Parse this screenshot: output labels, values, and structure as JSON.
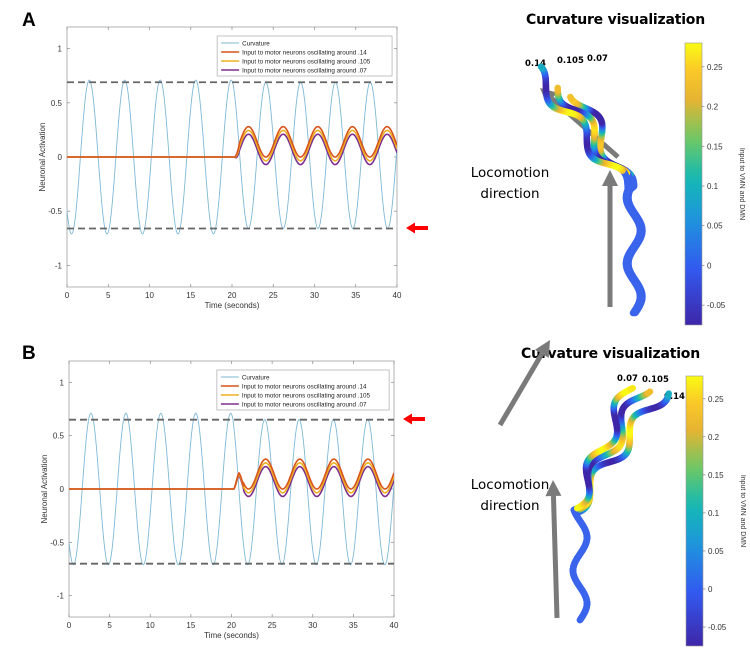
{
  "panels": [
    {
      "letter": "A",
      "viz_title": "Curvature visualization",
      "locomotion_label_line1": "Locomotion",
      "locomotion_label_line2": "direction",
      "worm_labels": [
        "0.14",
        "0.105",
        "0.07"
      ],
      "colorbar": {
        "label": "Input to VMN and DMN",
        "ticks": [
          "0.25",
          "0.2",
          "0.15",
          "0.1",
          "0.05",
          "0",
          "-0.05"
        ],
        "range": [
          -0.075,
          0.28
        ]
      },
      "red_arrow": "pointing at lower dashed threshold"
    },
    {
      "letter": "B",
      "viz_title": "Curvature visualization",
      "locomotion_label_line1": "Locomotion",
      "locomotion_label_line2": "direction",
      "worm_labels": [
        "0.07",
        "0.105",
        "0.14"
      ],
      "colorbar": {
        "label": "Input to VMN and DMN",
        "ticks": [
          "0.25",
          "0.2",
          "0.15",
          "0.1",
          "0.05",
          "0",
          "-0.05"
        ],
        "range": [
          -0.075,
          0.28
        ]
      },
      "red_arrow": "pointing at upper dashed threshold"
    }
  ],
  "colors": {
    "curvature": "#7fb8d6",
    "osc_014": "#d9541a",
    "osc_0105": "#eeb020",
    "osc_007": "#7e2f8e",
    "dashed": "#666666",
    "red_arrow": "#ff0000",
    "direction_arrow": "#7a7a7a"
  },
  "chart_data": [
    {
      "panel": "A",
      "type": "line",
      "title": "",
      "xlabel": "Time (seconds)",
      "ylabel": "Neuronal Activation",
      "xlim": [
        0,
        40
      ],
      "ylim": [
        -1.2,
        1.2
      ],
      "xticks": [
        0,
        5,
        10,
        15,
        20,
        25,
        30,
        35,
        40
      ],
      "yticks": [
        -1,
        -0.5,
        0,
        0.5,
        1
      ],
      "ytick_labels": [
        "-1",
        "-0.5",
        "0",
        "0.5",
        "1"
      ],
      "grid": false,
      "legend_position": "upper right",
      "legend": [
        "Curvature",
        "Input to motor neurons oscillating around .14",
        "Input to motor neurons oscillating around .105",
        "Input to motor neurons oscillating around .07"
      ],
      "series": [
        {
          "name": "Curvature",
          "description": "sinusoid, period ~4.3 s, amplitude ~0.71 for t<20; after t=20 oscillates between ~-0.66 and ~0.69",
          "period": 4.3,
          "peaks_before_20": 0.71,
          "troughs_before_20": -0.71,
          "peaks_after_20": 0.69,
          "troughs_after_20": -0.66
        },
        {
          "name": "Input to motor neurons oscillating around .14",
          "description": "0 for t<20, then oscillates",
          "min": 0.0,
          "max": 0.28
        },
        {
          "name": "Input to motor neurons oscillating around .105",
          "description": "0 for t<20, then oscillates",
          "min": -0.035,
          "max": 0.245
        },
        {
          "name": "Input to motor neurons oscillating around .07",
          "description": "0 for t<20, then oscillates",
          "min": -0.07,
          "max": 0.21
        }
      ],
      "hlines": [
        {
          "y": 0.69,
          "style": "dashed"
        },
        {
          "y": -0.66,
          "style": "dashed"
        }
      ]
    },
    {
      "panel": "B",
      "type": "line",
      "title": "",
      "xlabel": "Time (seconds)",
      "ylabel": "Neuronal Activation",
      "xlim": [
        0,
        40
      ],
      "ylim": [
        -1.2,
        1.2
      ],
      "xticks": [
        0,
        5,
        10,
        15,
        20,
        25,
        30,
        35,
        40
      ],
      "yticks": [
        -1,
        -0.5,
        0,
        0.5,
        1
      ],
      "ytick_labels": [
        "-1",
        "-0.5",
        "0",
        "0.5",
        "1"
      ],
      "grid": false,
      "legend_position": "upper right",
      "legend": [
        "Curvature",
        "Input to motor neurons oscillating around .14",
        "Input to motor neurons oscillating around .105",
        "Input to motor neurons oscillating around .07"
      ],
      "series": [
        {
          "name": "Curvature",
          "description": "sinusoid, period ~4.3 s, amplitude ~0.71 for t<20; after t=20 oscillates between ~-0.71 and ~0.65",
          "period": 4.3,
          "peaks_before_20": 0.71,
          "troughs_before_20": -0.71,
          "peaks_after_20": 0.65,
          "troughs_after_20": -0.71
        },
        {
          "name": "Input to motor neurons oscillating around .14",
          "description": "0 for t<20, then oscillates (phase inverted vs A)",
          "min": 0.0,
          "max": 0.28
        },
        {
          "name": "Input to motor neurons oscillating around .105",
          "description": "0 for t<20, then oscillates",
          "min": -0.035,
          "max": 0.245
        },
        {
          "name": "Input to motor neurons oscillating around .07",
          "description": "0 for t<20, then oscillates",
          "min": -0.07,
          "max": 0.21
        }
      ],
      "hlines": [
        {
          "y": 0.65,
          "style": "dashed"
        },
        {
          "y": -0.7,
          "style": "dashed"
        }
      ]
    }
  ]
}
